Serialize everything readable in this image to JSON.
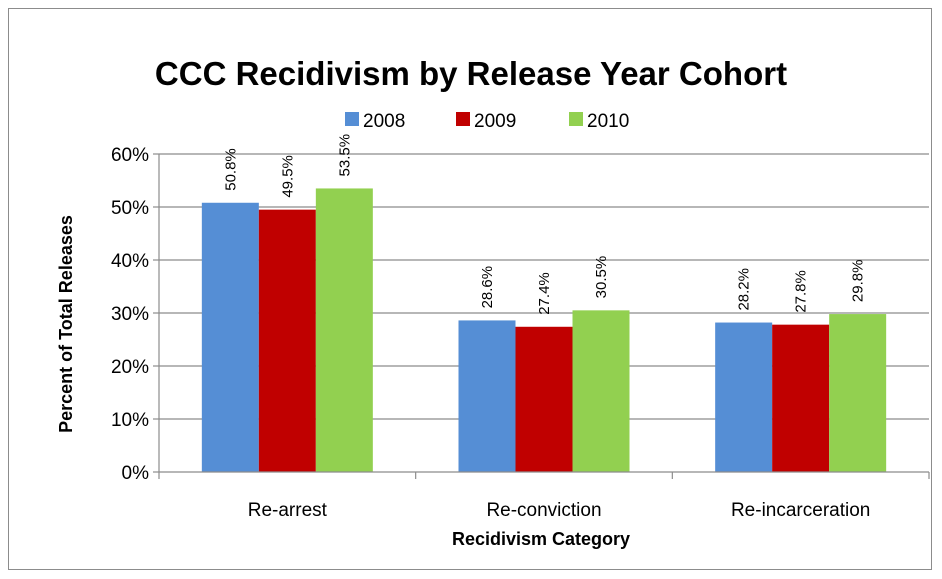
{
  "chart_data": {
    "type": "bar",
    "title": "CCC Recidivism by Release Year Cohort",
    "xlabel": "Recidivism Category",
    "ylabel": "Percent of Total Releases",
    "categories": [
      "Re-arrest",
      "Re-conviction",
      "Re-incarceration"
    ],
    "series": [
      {
        "name": "2008",
        "values": [
          50.8,
          28.6,
          28.2
        ],
        "labels": [
          "50.8%",
          "28.6%",
          "28.2%"
        ],
        "color": "#558ED5"
      },
      {
        "name": "2009",
        "values": [
          49.5,
          27.4,
          27.8
        ],
        "labels": [
          "49.5%",
          "27.4%",
          "27.8%"
        ],
        "color": "#C00000"
      },
      {
        "name": "2010",
        "values": [
          53.5,
          30.5,
          29.8
        ],
        "labels": [
          "53.5%",
          "30.5%",
          "29.8%"
        ],
        "color": "#92D050"
      }
    ],
    "ylim": [
      0,
      60
    ],
    "yticks": [
      "0%",
      "10%",
      "20%",
      "30%",
      "40%",
      "50%",
      "60%"
    ],
    "grid": true,
    "legend_position": "top"
  }
}
